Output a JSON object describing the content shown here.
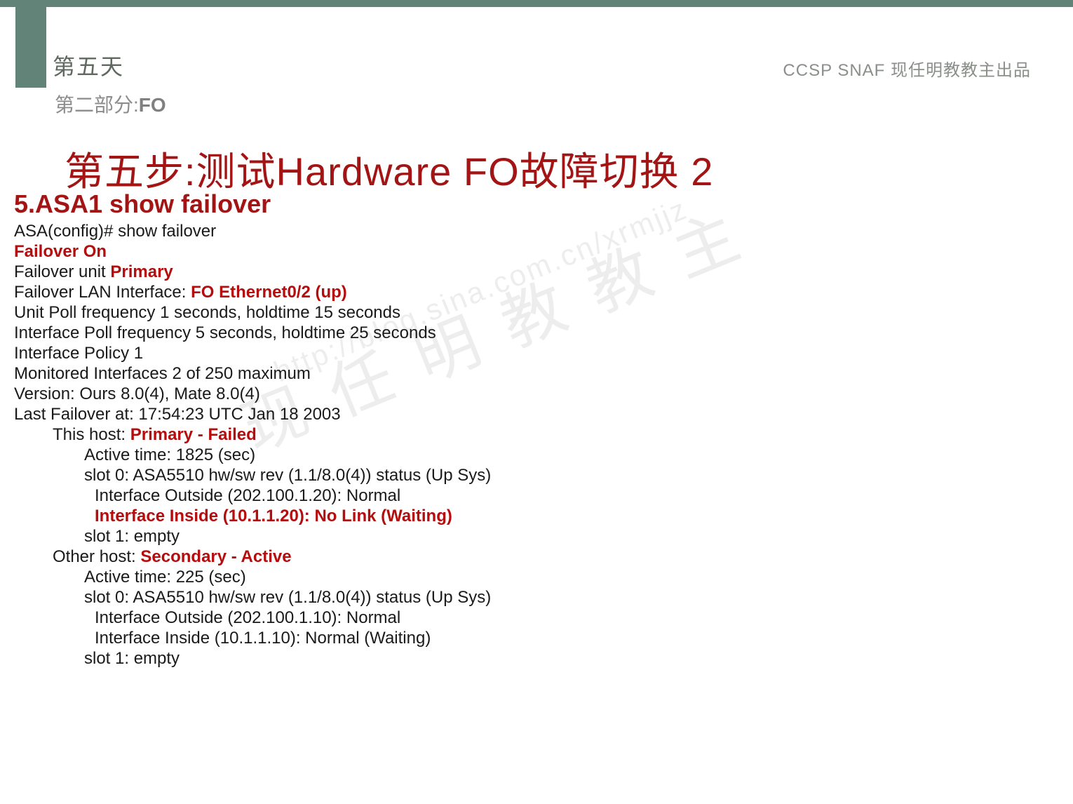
{
  "header": {
    "day": "第五天",
    "right": "CCSP SNAF  现任明教教主出品",
    "sub_prefix": "第二部分:",
    "sub_bold": "FO"
  },
  "title": {
    "main": "第五步:测试Hardware FO故障切换 2",
    "sub": "5.ASA1 show failover"
  },
  "lines": {
    "l1": "ASA(config)# show failover",
    "l2": "Failover On",
    "l3a": "Failover unit ",
    "l3b": "Primary",
    "l4a": "Failover LAN Interface: ",
    "l4b": "FO Ethernet0/2 (up)",
    "l5": "Unit Poll frequency 1 seconds, holdtime 15 seconds",
    "l6": "Interface Poll frequency 5 seconds, holdtime 25 seconds",
    "l7": "Interface Policy 1",
    "l8": "Monitored Interfaces 2 of 250 maximum",
    "l9": "Version: Ours 8.0(4), Mate 8.0(4)",
    "l10": "Last Failover at: 17:54:23 UTC Jan 18 2003",
    "l11a": "This host: ",
    "l11b": "Primary - Failed",
    "l12": "Active time: 1825 (sec)",
    "l13": "slot 0: ASA5510 hw/sw rev (1.1/8.0(4)) status (Up Sys)",
    "l14": "Interface Outside (202.100.1.20): Normal",
    "l15": "Interface Inside (10.1.1.20): No Link (Waiting)",
    "l16": "slot 1: empty",
    "l17a": "Other host: ",
    "l17b": "Secondary - Active",
    "l18": "Active time: 225 (sec)",
    "l19": "slot 0: ASA5510 hw/sw rev (1.1/8.0(4)) status (Up Sys)",
    "l20": "Interface Outside (202.100.1.10): Normal",
    "l21": "Interface Inside (10.1.1.10): Normal (Waiting)",
    "l22": "slot 1: empty"
  },
  "watermark": {
    "text": "现 任 明 教 教 主",
    "url": "http://blog.sina.com.cn/xrmjjz"
  },
  "colors": {
    "accent_band": "#628478",
    "red": "#a31515",
    "red_bold": "#b50d0d",
    "body": "#1a1a1a",
    "gray_header": "#5f6960",
    "gray_sub": "#8c8c8c",
    "watermark_gray": "#cccccc"
  }
}
